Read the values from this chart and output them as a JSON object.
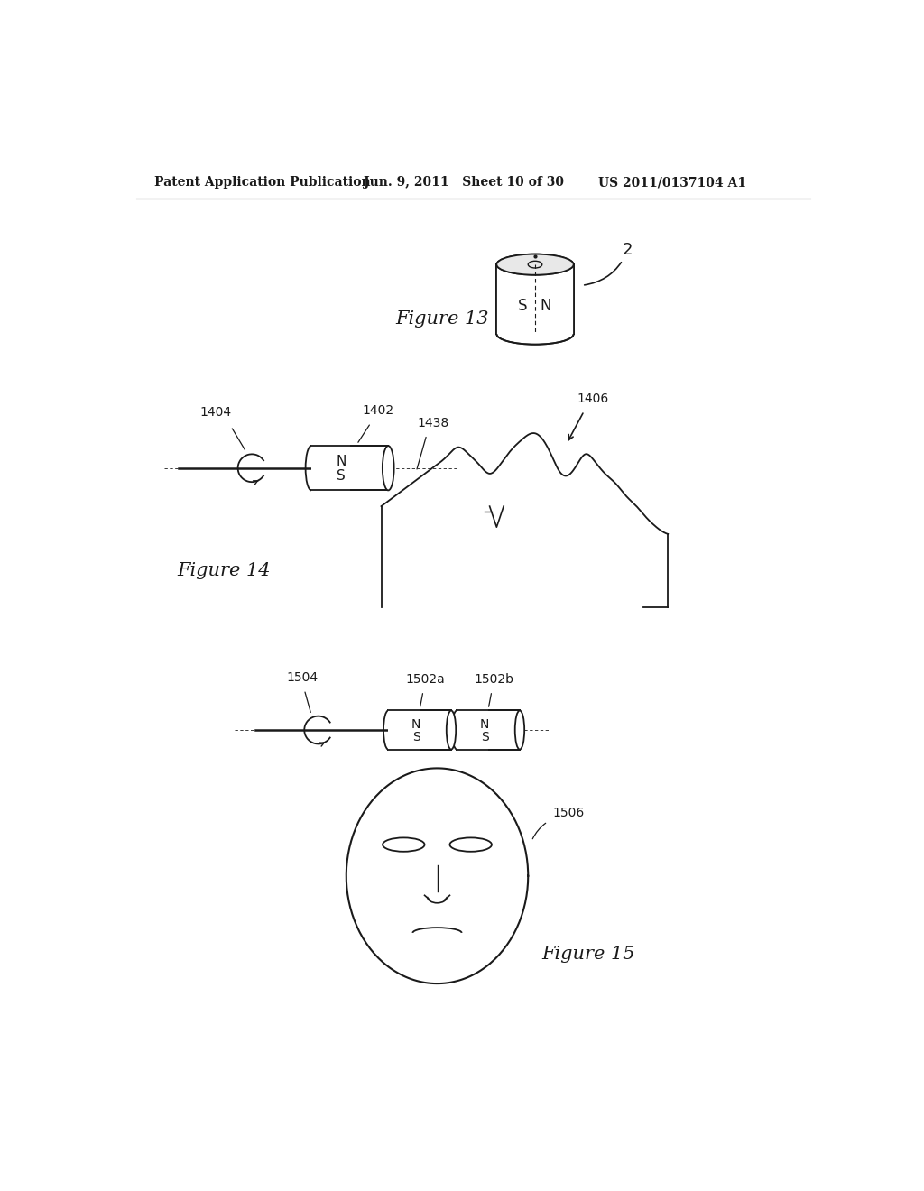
{
  "header_left": "Patent Application Publication",
  "header_mid": "Jun. 9, 2011   Sheet 10 of 30",
  "header_right": "US 2011/0137104 A1",
  "fig13_label": "Figure 13",
  "fig13_ref": "2",
  "fig14_label": "Figure 14",
  "fig15_label": "Figure 15",
  "label_1404": "1404",
  "label_1402": "1402",
  "label_1438": "1438",
  "label_1406": "1406",
  "label_1504": "1504",
  "label_1502a": "1502a",
  "label_1502b": "1502b",
  "label_1506": "1506",
  "bg_color": "#ffffff",
  "line_color": "#1a1a1a",
  "text_color": "#1a1a1a"
}
